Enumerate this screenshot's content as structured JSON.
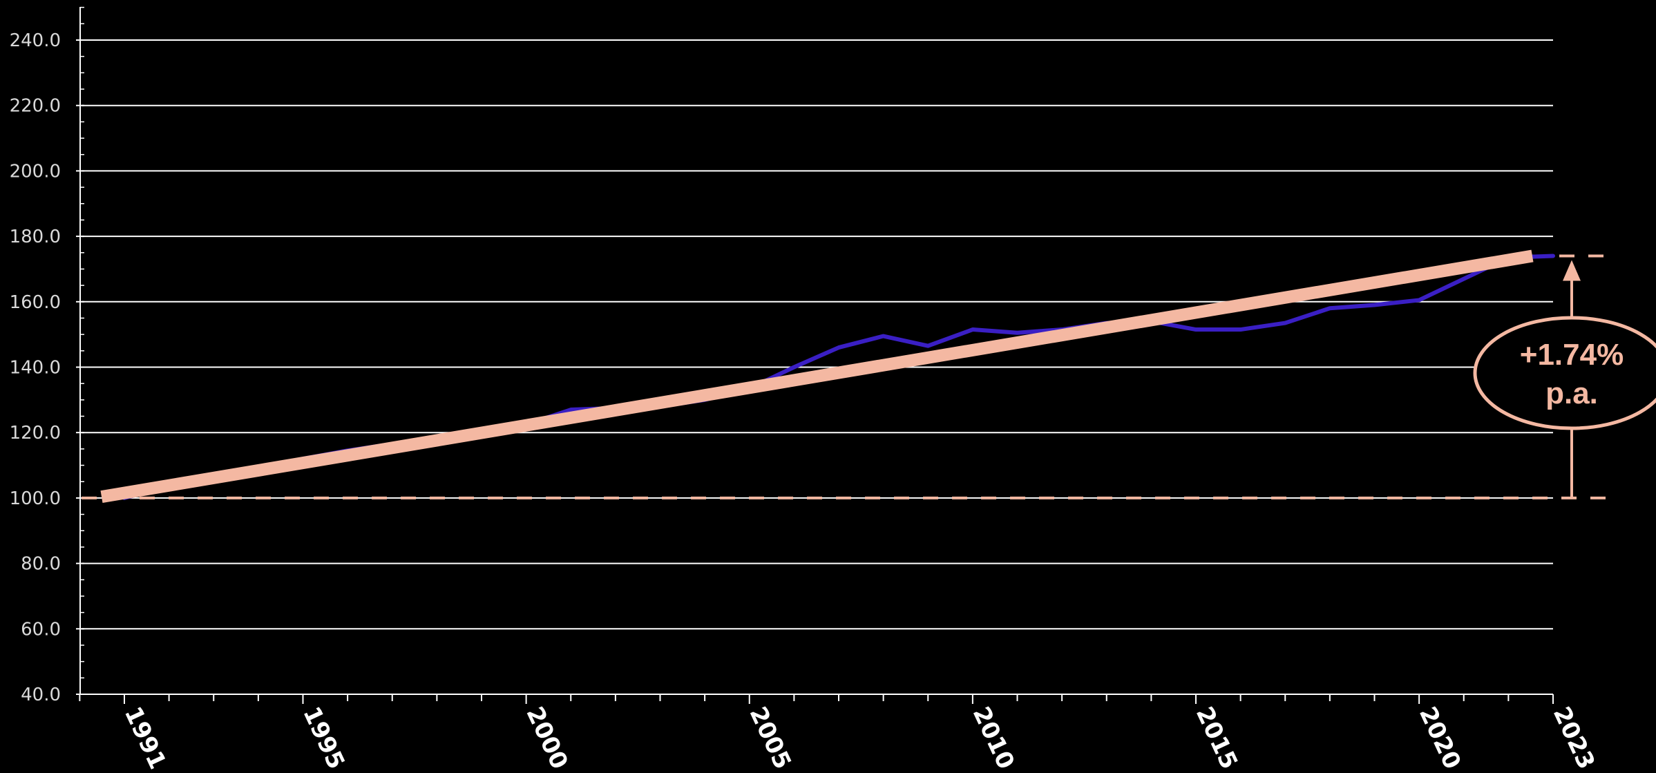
{
  "chart_data": {
    "type": "line",
    "title": "",
    "xlabel": "",
    "ylabel": "",
    "xlim": [
      1990.5,
      2023
    ],
    "ylim": [
      40,
      250
    ],
    "y_ticks": [
      40,
      60,
      80,
      100,
      120,
      140,
      160,
      180,
      200,
      220,
      240
    ],
    "y_tick_labels": [
      "40.0",
      "60.0",
      "80.0",
      "100.0",
      "120.0",
      "140.0",
      "160.0",
      "180.0",
      "200.0",
      "220.0",
      "240.0"
    ],
    "x_labeled_ticks": [
      1991,
      1995,
      2000,
      2005,
      2010,
      2015,
      2020,
      2023
    ],
    "x_tick_labels": [
      "1991",
      "1995",
      "2000",
      "2005",
      "2010",
      "2015",
      "2020",
      "2023"
    ],
    "grid": "horizontal",
    "series": [
      {
        "color": "#3a1fc4",
        "x": [
          1991,
          1992,
          1993,
          1994,
          1995,
          1996,
          1997,
          1998,
          1999,
          2000,
          2001,
          2002,
          2003,
          2004,
          2005,
          2006,
          2007,
          2008,
          2009,
          2010,
          2011,
          2012,
          2013,
          2014,
          2015,
          2016,
          2017,
          2018,
          2019,
          2020,
          2021,
          2022,
          2023
        ],
        "values": [
          100.0,
          103.5,
          106.5,
          109.0,
          112.0,
          114.5,
          116.5,
          118.0,
          119.5,
          122.5,
          127.0,
          127.5,
          128.0,
          130.0,
          133.5,
          140.0,
          146.0,
          149.5,
          146.5,
          151.5,
          150.5,
          151.5,
          153.5,
          154.0,
          151.5,
          151.5,
          153.5,
          158.0,
          159.0,
          160.5,
          167.0,
          173.5,
          174.0
        ]
      },
      {
        "type": "trend",
        "color": "#f4b8a2",
        "x": [
          1991,
          2023
        ],
        "values": [
          101.0,
          174.0
        ]
      }
    ],
    "reference_lines": [
      {
        "y": 100.0,
        "style": "dashed",
        "color": "#f4b8a2"
      },
      {
        "y": 174.0,
        "style": "dashed",
        "color": "#f4b8a2"
      }
    ],
    "annotations": [
      {
        "line1": "+1.74%",
        "line2": "p.a.",
        "color": "#f4b8a2",
        "from_value": 100.0,
        "to_value": 174.0
      }
    ]
  }
}
